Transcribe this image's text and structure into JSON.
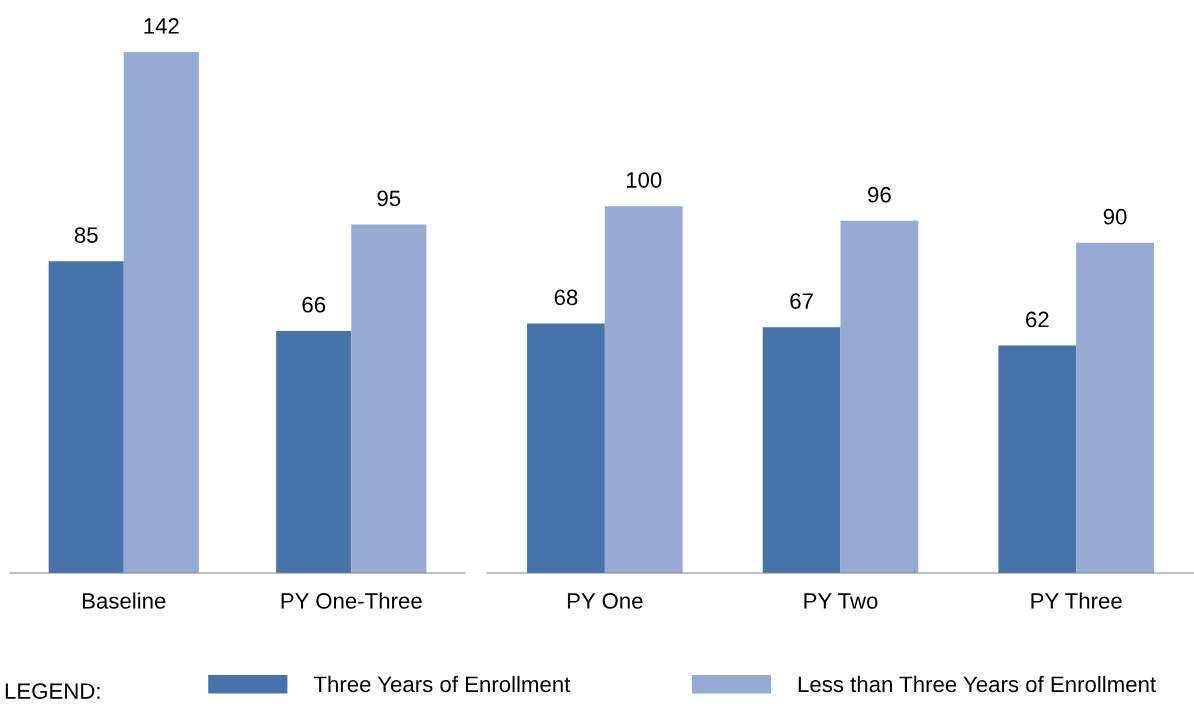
{
  "chart_data": [
    {
      "type": "bar",
      "categories": [
        "Baseline",
        "PY One-Three"
      ],
      "series": [
        {
          "name": "Three Years of Enrollment",
          "color": "#4673a8",
          "values": [
            85,
            66
          ]
        },
        {
          "name": "Less than Three Years of Enrollment",
          "color": "#95abd3",
          "values": [
            142,
            95
          ]
        }
      ],
      "tick_labels": "x",
      "data_labels": true,
      "grid": false,
      "legend": "bottom",
      "legend_title": "LEGEND:"
    },
    {
      "type": "bar",
      "categories": [
        "PY One",
        "PY Two",
        "PY Three"
      ],
      "series": [
        {
          "color": "#4673a8",
          "values": [
            68,
            67,
            62
          ]
        },
        {
          "color": "#95abd3",
          "values": [
            100,
            96,
            90
          ]
        }
      ],
      "tick_labels": "x",
      "data_labels": true,
      "grid": false
    }
  ]
}
